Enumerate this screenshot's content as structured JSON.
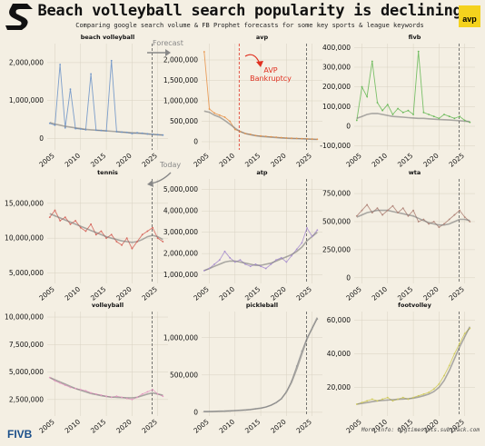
{
  "header": {
    "title": "Beach volleyball search popularity is declining",
    "subtitle": "Comparing google search volume & FB Prophet forecasts for some key sports & league keywords",
    "badge": "avp"
  },
  "footer": {
    "credit": "More info: bigtimestats.substack.com",
    "logo": "FIVB"
  },
  "colors": {
    "background": "#f4efe3",
    "ref_line": "#555555",
    "annotation_red": "#e03020",
    "annotation_gray": "#888888"
  },
  "annotations": {
    "forecast": "Forecast",
    "today": "Today",
    "avp_event": "AVP\nBankruptcy"
  },
  "chart_data": [
    {
      "type": "line",
      "title": "beach volleyball",
      "color": "#6f95c8",
      "x": [
        2004,
        2005,
        2006,
        2007,
        2008,
        2009,
        2010,
        2011,
        2012,
        2013,
        2014,
        2015,
        2016,
        2017,
        2018,
        2019,
        2020,
        2021,
        2022,
        2023,
        2024,
        2025,
        2026
      ],
      "values": [
        400000,
        350000,
        1950000,
        280000,
        1300000,
        260000,
        250000,
        230000,
        1700000,
        220000,
        210000,
        200000,
        2050000,
        180000,
        170000,
        160000,
        130000,
        150000,
        140000,
        120000,
        110000,
        100000,
        90000
      ],
      "trend": [
        420000,
        380000,
        350000,
        320000,
        300000,
        280000,
        260000,
        240000,
        230000,
        220000,
        210000,
        200000,
        190000,
        180000,
        170000,
        160000,
        150000,
        140000,
        130000,
        120000,
        110000,
        100000,
        90000
      ],
      "yticks": [
        0,
        1000000,
        2000000
      ],
      "ytick_labels": [
        "0",
        "1,000,000",
        "2,000,000"
      ],
      "ylim": [
        -300000,
        2500000
      ],
      "xticks": [
        2005,
        2010,
        2015,
        2020,
        2025
      ],
      "xlim": [
        2003.5,
        2027
      ]
    },
    {
      "type": "line",
      "title": "avp",
      "color": "#e8944a",
      "x": [
        2004,
        2005,
        2006,
        2007,
        2008,
        2009,
        2010,
        2011,
        2012,
        2013,
        2014,
        2015,
        2016,
        2017,
        2018,
        2019,
        2020,
        2021,
        2022,
        2023,
        2024,
        2025,
        2026
      ],
      "values": [
        2200000,
        800000,
        700000,
        650000,
        600000,
        500000,
        300000,
        250000,
        200000,
        180000,
        150000,
        140000,
        130000,
        120000,
        110000,
        100000,
        90000,
        85000,
        80000,
        75000,
        70000,
        65000,
        60000
      ],
      "trend": [
        750000,
        720000,
        650000,
        600000,
        520000,
        430000,
        330000,
        250000,
        200000,
        170000,
        150000,
        130000,
        120000,
        110000,
        100000,
        90000,
        85000,
        80000,
        75000,
        70000,
        65000,
        60000,
        55000
      ],
      "yticks": [
        0,
        500000,
        1000000,
        1500000,
        2000000
      ],
      "ytick_labels": [
        "0",
        "500,000",
        "1,000,000",
        "1,500,000",
        "2,000,000"
      ],
      "ylim": [
        -200000,
        2400000
      ],
      "xticks": [
        2005,
        2010,
        2015,
        2020,
        2025
      ],
      "xlim": [
        2003.5,
        2027
      ],
      "event_x": 2010.8
    },
    {
      "type": "line",
      "title": "fivb",
      "color": "#6bba5a",
      "x": [
        2004,
        2005,
        2006,
        2007,
        2008,
        2009,
        2010,
        2011,
        2012,
        2013,
        2014,
        2015,
        2016,
        2017,
        2018,
        2019,
        2020,
        2021,
        2022,
        2023,
        2024,
        2025,
        2026
      ],
      "values": [
        30000,
        200000,
        150000,
        330000,
        120000,
        80000,
        110000,
        60000,
        90000,
        70000,
        80000,
        60000,
        380000,
        70000,
        60000,
        50000,
        40000,
        60000,
        50000,
        40000,
        50000,
        30000,
        20000
      ],
      "trend": [
        40000,
        50000,
        60000,
        65000,
        65000,
        60000,
        55000,
        50000,
        48000,
        46000,
        44000,
        42000,
        40000,
        40000,
        38000,
        36000,
        34000,
        33000,
        32000,
        30000,
        28000,
        26000,
        24000
      ],
      "yticks": [
        -100000,
        0,
        100000,
        200000,
        300000,
        400000
      ],
      "ytick_labels": [
        "-100,000",
        "0",
        "100,000",
        "200,000",
        "300,000",
        "400,000"
      ],
      "ylim": [
        -120000,
        420000
      ],
      "xticks": [
        2005,
        2010,
        2015,
        2020,
        2025
      ],
      "xlim": [
        2003.5,
        2027
      ]
    },
    {
      "type": "line",
      "title": "tennis",
      "color": "#d6665c",
      "x": [
        2004,
        2005,
        2006,
        2007,
        2008,
        2009,
        2010,
        2011,
        2012,
        2013,
        2014,
        2015,
        2016,
        2017,
        2018,
        2019,
        2020,
        2021,
        2022,
        2023,
        2024,
        2025,
        2026
      ],
      "values": [
        13000000,
        14000000,
        12500000,
        13000000,
        12000000,
        12500000,
        11500000,
        11000000,
        12000000,
        10500000,
        11000000,
        10000000,
        10500000,
        9500000,
        9000000,
        10000000,
        8500000,
        9500000,
        10500000,
        11000000,
        11500000,
        10000000,
        9500000
      ],
      "trend": [
        13500000,
        13200000,
        12900000,
        12600000,
        12300000,
        12000000,
        11700000,
        11400000,
        11100000,
        10800000,
        10500000,
        10200000,
        10000000,
        9800000,
        9600000,
        9500000,
        9400000,
        9500000,
        9800000,
        10200000,
        10400000,
        10200000,
        9800000
      ],
      "yticks": [
        5000000,
        10000000,
        15000000
      ],
      "ytick_labels": [
        "5,000,000",
        "10,000,000",
        "15,000,000"
      ],
      "ylim": [
        3500000,
        18500000
      ],
      "xticks": [
        2005,
        2010,
        2015,
        2020,
        2025
      ],
      "xlim": [
        2003.5,
        2027
      ]
    },
    {
      "type": "line",
      "title": "atp",
      "color": "#a98fcf",
      "x": [
        2004,
        2005,
        2006,
        2007,
        2008,
        2009,
        2010,
        2011,
        2012,
        2013,
        2014,
        2015,
        2016,
        2017,
        2018,
        2019,
        2020,
        2021,
        2022,
        2023,
        2024,
        2025,
        2026
      ],
      "values": [
        1200000,
        1300000,
        1500000,
        1700000,
        2100000,
        1800000,
        1600000,
        1700000,
        1500000,
        1400000,
        1500000,
        1400000,
        1300000,
        1500000,
        1700000,
        1800000,
        1600000,
        1900000,
        2200000,
        2500000,
        3200000,
        2800000,
        3100000
      ],
      "trend": [
        1200000,
        1300000,
        1400000,
        1500000,
        1600000,
        1650000,
        1650000,
        1600000,
        1550000,
        1500000,
        1450000,
        1450000,
        1500000,
        1550000,
        1650000,
        1750000,
        1850000,
        1950000,
        2100000,
        2300000,
        2600000,
        2800000,
        3000000
      ],
      "yticks": [
        1000000,
        2000000,
        3000000,
        4000000,
        5000000
      ],
      "ytick_labels": [
        "1,000,000",
        "2,000,000",
        "3,000,000",
        "4,000,000",
        "5,000,000"
      ],
      "ylim": [
        600000,
        5500000
      ],
      "xticks": [
        2005,
        2010,
        2015,
        2020,
        2025
      ],
      "xlim": [
        2003.5,
        2027
      ]
    },
    {
      "type": "line",
      "title": "wta",
      "color": "#b08478",
      "x": [
        2004,
        2005,
        2006,
        2007,
        2008,
        2009,
        2010,
        2011,
        2012,
        2013,
        2014,
        2015,
        2016,
        2017,
        2018,
        2019,
        2020,
        2021,
        2022,
        2023,
        2024,
        2025,
        2026
      ],
      "values": [
        550000,
        600000,
        650000,
        580000,
        620000,
        560000,
        600000,
        640000,
        580000,
        620000,
        550000,
        600000,
        500000,
        520000,
        480000,
        500000,
        450000,
        480000,
        520000,
        560000,
        600000,
        540000,
        500000
      ],
      "trend": [
        540000,
        560000,
        580000,
        590000,
        600000,
        600000,
        600000,
        590000,
        580000,
        570000,
        560000,
        550000,
        530000,
        510000,
        490000,
        480000,
        470000,
        470000,
        480000,
        500000,
        520000,
        520000,
        510000
      ],
      "yticks": [
        0,
        250000,
        500000,
        750000
      ],
      "ytick_labels": [
        "0",
        "250,000",
        "500,000",
        "750,000"
      ],
      "ylim": [
        -50000,
        880000
      ],
      "xticks": [
        2005,
        2010,
        2015,
        2020,
        2025
      ],
      "xlim": [
        2003.5,
        2027
      ]
    },
    {
      "type": "line",
      "title": "volleyball",
      "color": "#e59ac3",
      "x": [
        2004,
        2005,
        2006,
        2007,
        2008,
        2009,
        2010,
        2011,
        2012,
        2013,
        2014,
        2015,
        2016,
        2017,
        2018,
        2019,
        2020,
        2021,
        2022,
        2023,
        2024,
        2025,
        2026
      ],
      "values": [
        4500000,
        4200000,
        4000000,
        3800000,
        3600000,
        3500000,
        3400000,
        3300000,
        3100000,
        3000000,
        2900000,
        2800000,
        2700000,
        2800000,
        2700000,
        2600000,
        2500000,
        2700000,
        3000000,
        3200000,
        3400000,
        3000000,
        2800000
      ],
      "trend": [
        4500000,
        4300000,
        4100000,
        3900000,
        3700000,
        3500000,
        3350000,
        3200000,
        3050000,
        2950000,
        2850000,
        2780000,
        2720000,
        2700000,
        2680000,
        2660000,
        2650000,
        2700000,
        2850000,
        3000000,
        3100000,
        3000000,
        2900000
      ],
      "yticks": [
        2500000,
        5000000,
        7500000,
        10000000
      ],
      "ytick_labels": [
        "2,500,000",
        "5,000,000",
        "7,500,000",
        "10,000,000"
      ],
      "ylim": [
        1000000,
        10500000
      ],
      "xticks": [
        2005,
        2010,
        2015,
        2020,
        2025
      ],
      "xlim": [
        2003.5,
        2027
      ]
    },
    {
      "type": "line",
      "title": "pickleball",
      "color": "#9a9a9a",
      "x": [
        2004,
        2005,
        2006,
        2007,
        2008,
        2009,
        2010,
        2011,
        2012,
        2013,
        2014,
        2015,
        2016,
        2017,
        2018,
        2019,
        2020,
        2021,
        2022,
        2023,
        2024,
        2025,
        2026
      ],
      "values": [
        10000,
        10000,
        12000,
        13000,
        15000,
        18000,
        22000,
        26000,
        30000,
        36000,
        45000,
        55000,
        70000,
        95000,
        130000,
        180000,
        280000,
        420000,
        620000,
        820000,
        1000000,
        1120000,
        1250000
      ],
      "trend": [
        10000,
        10000,
        12000,
        14000,
        16000,
        19000,
        23000,
        27000,
        32000,
        38000,
        46000,
        56000,
        70000,
        95000,
        130000,
        180000,
        270000,
        400000,
        580000,
        780000,
        980000,
        1130000,
        1270000
      ],
      "yticks": [
        0,
        500000,
        1000000
      ],
      "ytick_labels": [
        "0",
        "500,000",
        "1,000,000"
      ],
      "ylim": [
        -50000,
        1350000
      ],
      "xticks": [
        2005,
        2010,
        2015,
        2020,
        2025
      ],
      "xlim": [
        2003.5,
        2027
      ]
    },
    {
      "type": "line",
      "title": "footvolley",
      "color": "#cfca5a",
      "x": [
        2004,
        2005,
        2006,
        2007,
        2008,
        2009,
        2010,
        2011,
        2012,
        2013,
        2014,
        2015,
        2016,
        2017,
        2018,
        2019,
        2020,
        2021,
        2022,
        2023,
        2024,
        2025,
        2026
      ],
      "values": [
        10000,
        11000,
        12000,
        13000,
        12000,
        13000,
        14000,
        12000,
        13000,
        14000,
        13000,
        14000,
        15000,
        16000,
        17000,
        19000,
        22000,
        27000,
        33000,
        40000,
        46000,
        52000,
        55000
      ],
      "trend": [
        10000,
        10500,
        11000,
        11500,
        12000,
        12300,
        12500,
        12700,
        12900,
        13100,
        13300,
        13600,
        14200,
        15000,
        16000,
        17500,
        20000,
        24000,
        30000,
        37000,
        44000,
        50000,
        56000
      ],
      "yticks": [
        20000,
        40000,
        60000
      ],
      "ytick_labels": [
        "20,000",
        "40,000",
        "60,000"
      ],
      "ylim": [
        3000,
        65000
      ],
      "xticks": [
        2005,
        2010,
        2015,
        2020,
        2025
      ],
      "xlim": [
        2003.5,
        2027
      ]
    }
  ]
}
